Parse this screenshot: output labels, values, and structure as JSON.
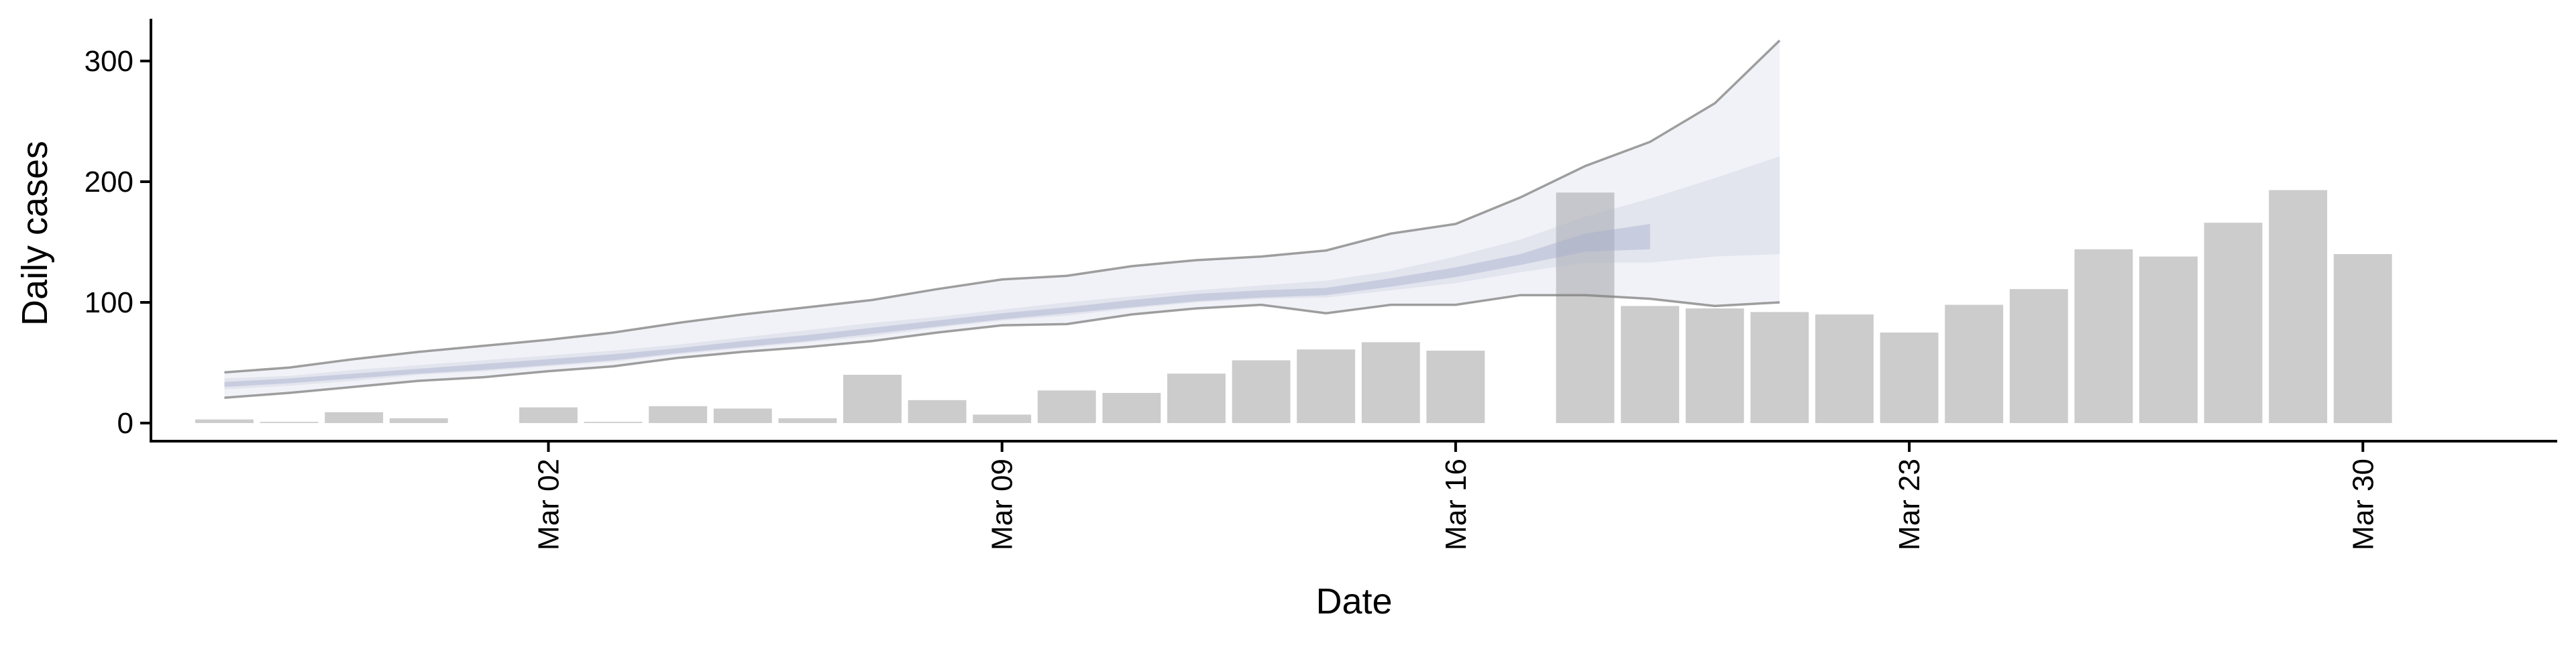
{
  "chart_data": {
    "type": "bar",
    "xlabel": "Date",
    "ylabel": "Daily cases",
    "ylim": [
      -15,
      335
    ],
    "yticks": [
      0,
      100,
      200,
      300
    ],
    "grid": false,
    "x_tick_labels": [
      {
        "date": "2020-03-02",
        "label": "Mar 02"
      },
      {
        "date": "2020-03-09",
        "label": "Mar 09"
      },
      {
        "date": "2020-03-16",
        "label": "Mar 16"
      },
      {
        "date": "2020-03-23",
        "label": "Mar 23"
      },
      {
        "date": "2020-03-30",
        "label": "Mar 30"
      }
    ],
    "bars": {
      "color": "#cccccc",
      "x": [
        "2020-02-26",
        "2020-02-27",
        "2020-02-28",
        "2020-02-29",
        "2020-03-01",
        "2020-03-02",
        "2020-03-03",
        "2020-03-04",
        "2020-03-05",
        "2020-03-06",
        "2020-03-07",
        "2020-03-08",
        "2020-03-09",
        "2020-03-10",
        "2020-03-11",
        "2020-03-12",
        "2020-03-13",
        "2020-03-14",
        "2020-03-15",
        "2020-03-16",
        "2020-03-17",
        "2020-03-18",
        "2020-03-19",
        "2020-03-20",
        "2020-03-21",
        "2020-03-22",
        "2020-03-23",
        "2020-03-24",
        "2020-03-25",
        "2020-03-26",
        "2020-03-27",
        "2020-03-28",
        "2020-03-29",
        "2020-03-30",
        "2020-03-31"
      ],
      "values": [
        3,
        1,
        9,
        4,
        null,
        13,
        1,
        14,
        12,
        4,
        40,
        19,
        7,
        27,
        25,
        41,
        52,
        61,
        67,
        60,
        null,
        191,
        97,
        95,
        92,
        90,
        75,
        98,
        111,
        144,
        138,
        166,
        193,
        140,
        null
      ]
    },
    "forecast": {
      "x": [
        "2020-02-26",
        "2020-02-27",
        "2020-02-28",
        "2020-02-29",
        "2020-03-01",
        "2020-03-02",
        "2020-03-03",
        "2020-03-04",
        "2020-03-05",
        "2020-03-06",
        "2020-03-07",
        "2020-03-08",
        "2020-03-09",
        "2020-03-10",
        "2020-03-11",
        "2020-03-12",
        "2020-03-13",
        "2020-03-14",
        "2020-03-15",
        "2020-03-16",
        "2020-03-17",
        "2020-03-18",
        "2020-03-19",
        "2020-03-20",
        "2020-03-21",
        "2020-03-22"
      ],
      "band_color": "#a9afcc",
      "outer_upper": [
        42,
        46,
        53,
        59,
        64,
        69,
        75,
        83,
        90,
        96,
        102,
        111,
        119,
        122,
        130,
        135,
        138,
        143,
        157,
        165,
        187,
        213,
        233,
        265,
        317,
        null
      ],
      "outer_lower": [
        21,
        25,
        30,
        35,
        38,
        43,
        47,
        54,
        59,
        63,
        68,
        75,
        81,
        82,
        90,
        95,
        98,
        91,
        98,
        98,
        106,
        106,
        103,
        97,
        100,
        null
      ],
      "mid_upper": [
        37,
        39,
        44,
        48,
        52,
        56,
        60,
        65,
        71,
        77,
        83,
        88,
        94,
        100,
        105,
        110,
        114,
        118,
        126,
        138,
        152,
        171,
        186,
        203,
        221,
        null
      ],
      "mid_lower": [
        28,
        31,
        35,
        40,
        43,
        47,
        51,
        57,
        62,
        67,
        72,
        79,
        85,
        89,
        95,
        100,
        103,
        104,
        110,
        116,
        125,
        133,
        133,
        138,
        140,
        null
      ],
      "inner_upper": [
        34,
        37,
        41,
        45,
        49,
        53,
        57,
        62,
        68,
        73,
        79,
        85,
        91,
        96,
        102,
        107,
        110,
        112,
        120,
        129,
        140,
        157,
        165,
        null,
        null,
        null
      ],
      "inner_lower": [
        30,
        33,
        37,
        41,
        44,
        48,
        52,
        58,
        63,
        68,
        74,
        80,
        86,
        91,
        96,
        101,
        104,
        106,
        113,
        121,
        131,
        142,
        144,
        null,
        null,
        null
      ]
    }
  }
}
